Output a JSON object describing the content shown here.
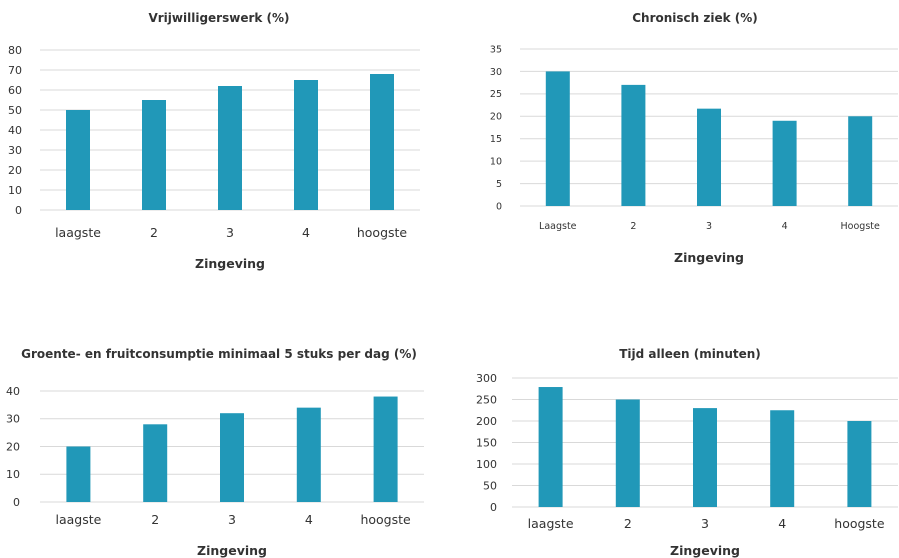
{
  "colors": {
    "bar": "#2198b8",
    "grid": "#d9d9d9",
    "text": "#333333"
  },
  "chart_data": [
    {
      "type": "bar",
      "title": "Vrijwilligerswerk (%)",
      "xlabel": "Zingeving",
      "ylabel": "",
      "categories": [
        "laagste",
        "2",
        "3",
        "4",
        "hoogste"
      ],
      "values": [
        50,
        55,
        62,
        65,
        68
      ],
      "ylim": [
        0,
        80
      ],
      "yticks": [
        "0",
        "10",
        "20",
        "30",
        "40",
        "50",
        "60",
        "70",
        "80"
      ],
      "grid": true,
      "legend": "none"
    },
    {
      "type": "bar",
      "title": "Chronisch ziek (%)",
      "xlabel": "Zingeving",
      "ylabel": "",
      "categories": [
        "Laagste",
        "2",
        "3",
        "4",
        "Hoogste"
      ],
      "values": [
        30,
        27,
        21.7,
        19,
        20
      ],
      "ylim": [
        0,
        35
      ],
      "yticks": [
        "0",
        "5",
        "10",
        "15",
        "20",
        "25",
        "30",
        "35"
      ],
      "grid": true,
      "legend": "none"
    },
    {
      "type": "bar",
      "title": "Groente- en fruitconsumptie minimaal 5 stuks per dag (%)",
      "xlabel": "Zingeving",
      "ylabel": "",
      "categories": [
        "laagste",
        "2",
        "3",
        "4",
        "hoogste"
      ],
      "values": [
        20,
        28,
        32,
        34,
        38
      ],
      "ylim": [
        0,
        40
      ],
      "yticks": [
        "0",
        "10",
        "20",
        "30",
        "40"
      ],
      "grid": true,
      "legend": "none"
    },
    {
      "type": "bar",
      "title": "Tijd alleen (minuten)",
      "xlabel": "Zingeving",
      "ylabel": "",
      "categories": [
        "laagste",
        "2",
        "3",
        "4",
        "hoogste"
      ],
      "values": [
        279,
        250,
        230,
        225,
        200
      ],
      "ylim": [
        0,
        300
      ],
      "yticks": [
        "0",
        "50",
        "100",
        "150",
        "200",
        "250",
        "300"
      ],
      "grid": true,
      "legend": "none"
    }
  ]
}
